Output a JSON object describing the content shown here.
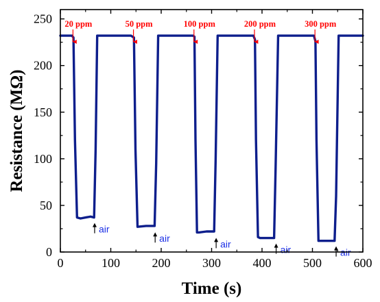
{
  "chart_data": {
    "type": "line",
    "title": "",
    "xlabel": "Time (s)",
    "ylabel": "Resistance (MΩ)",
    "xlim": [
      0,
      600
    ],
    "ylim": [
      0,
      260
    ],
    "x_ticks": [
      "0",
      "100",
      "200",
      "300",
      "400",
      "500",
      "600"
    ],
    "y_ticks": [
      "0",
      "50",
      "100",
      "150",
      "200",
      "250"
    ],
    "grid": false,
    "series": [
      {
        "color": "#0d1e8c",
        "x": [
          0,
          23,
          26,
          29,
          33,
          40,
          50,
          60,
          67,
          70,
          73,
          140,
          143,
          146,
          149,
          153,
          170,
          187,
          190,
          194,
          263,
          266,
          268,
          271,
          275,
          290,
          305,
          308,
          312,
          383,
          386,
          388,
          392,
          396,
          410,
          424,
          427,
          432,
          503,
          506,
          508,
          512,
          516,
          530,
          544,
          547,
          552,
          600
        ],
        "y": [
          232,
          232,
          230,
          120,
          37,
          36,
          37,
          38,
          37,
          110,
          232,
          232,
          231,
          230,
          110,
          27,
          28,
          28,
          95,
          232,
          232,
          231,
          120,
          21,
          21,
          22,
          22,
          100,
          232,
          232,
          228,
          120,
          16,
          15,
          15,
          15,
          90,
          232,
          232,
          226,
          120,
          12,
          12,
          12,
          12,
          60,
          232,
          232
        ]
      }
    ],
    "gas_labels": [
      {
        "text": "20 ppm",
        "x": 25
      },
      {
        "text": "50 ppm",
        "x": 145
      },
      {
        "text": "100 ppm",
        "x": 265
      },
      {
        "text": "200 ppm",
        "x": 385
      },
      {
        "text": "300 ppm",
        "x": 505
      }
    ],
    "air_labels": [
      {
        "text": "air",
        "x": 68,
        "y": 37
      },
      {
        "text": "air",
        "x": 188,
        "y": 27
      },
      {
        "text": "air",
        "x": 309,
        "y": 21
      },
      {
        "text": "air",
        "x": 428,
        "y": 15
      },
      {
        "text": "air",
        "x": 547,
        "y": 12
      }
    ],
    "colors": {
      "series": "#0d1e8c",
      "gas_annotation": "#ff0000",
      "air_annotation": "#1a2ee6",
      "air_arrow": "#000000"
    }
  }
}
